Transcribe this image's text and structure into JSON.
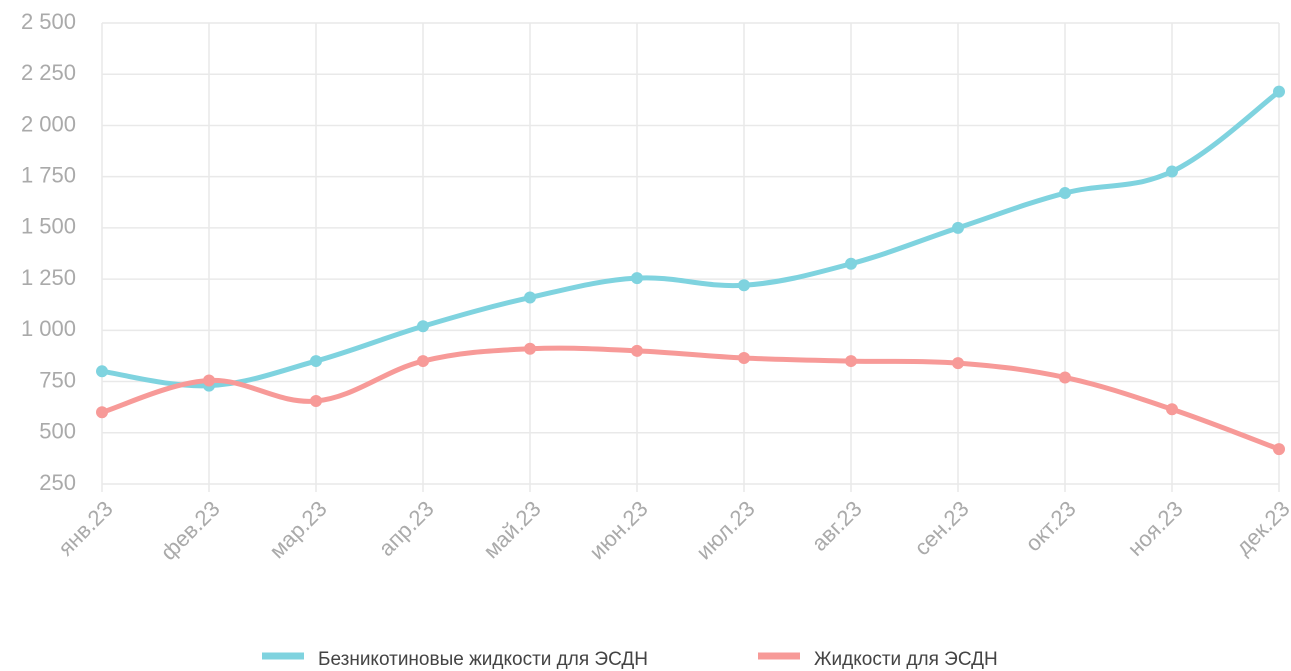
{
  "chart_data": {
    "type": "line",
    "categories": [
      "янв.23",
      "фев.23",
      "мар.23",
      "апр.23",
      "май.23",
      "июн.23",
      "июл.23",
      "авг.23",
      "сен.23",
      "окт.23",
      "ноя.23",
      "дек.23"
    ],
    "series": [
      {
        "name": "Безникотиновые жидкости для ЭСДН",
        "color": "#7fd3df",
        "values": [
          800,
          730,
          850,
          1020,
          1160,
          1255,
          1220,
          1325,
          1500,
          1670,
          1775,
          2165
        ]
      },
      {
        "name": "Жидкости для ЭСДН",
        "color": "#f79a98",
        "values": [
          600,
          755,
          655,
          850,
          910,
          900,
          865,
          850,
          840,
          770,
          615,
          420
        ]
      }
    ],
    "ylim": [
      250,
      2500
    ],
    "yticks": [
      250,
      500,
      750,
      {
        "value": 1000,
        "label": "1 000"
      },
      {
        "value": 1250,
        "label": "1 250"
      },
      {
        "value": 1500,
        "label": "1 500"
      },
      {
        "value": 1750,
        "label": "1 750"
      },
      {
        "value": 2000,
        "label": "2 000"
      },
      {
        "value": 2250,
        "label": "2 250"
      },
      {
        "value": 2500,
        "label": "2 500"
      }
    ],
    "grid": true,
    "legend": "bottom"
  }
}
